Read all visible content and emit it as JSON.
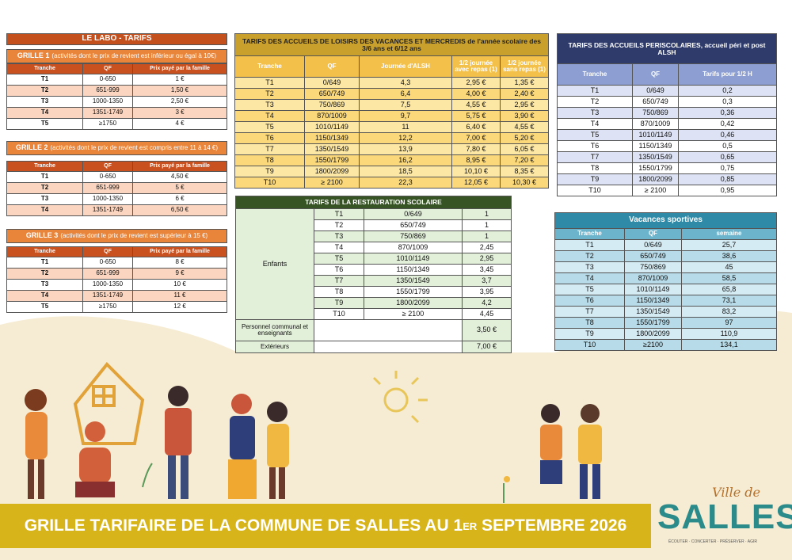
{
  "labo": {
    "title": "LE LABO - TARIFS",
    "grilles": [
      {
        "title": "GRILLE 1",
        "subtitle": "(activités dont le prix de revient est inférieur ou égal à 10€)",
        "columns": [
          "Tranche",
          "QF",
          "Prix payé par la famille"
        ],
        "rows": [
          [
            "T1",
            "0-650",
            "1 €"
          ],
          [
            "T2",
            "651-999",
            "1,50 €"
          ],
          [
            "T3",
            "1000-1350",
            "2,50 €"
          ],
          [
            "T4",
            "1351-1749",
            "3 €"
          ],
          [
            "T5",
            "≥1750",
            "4 €"
          ]
        ]
      },
      {
        "title": "GRILLE 2",
        "subtitle": "(activités dont le prix de revient est compris entre 11 à 14 €)",
        "columns": [
          "Tranche",
          "QF",
          "Prix payé par la famille"
        ],
        "rows": [
          [
            "T1",
            "0-650",
            "4,50 €"
          ],
          [
            "T2",
            "651-999",
            "5 €"
          ],
          [
            "T3",
            "1000-1350",
            "6 €"
          ],
          [
            "T4",
            "1351-1749",
            "6,50 €"
          ]
        ]
      },
      {
        "title": "GRILLE 3",
        "subtitle": "(activités dont le prix de revient est supérieur à 15 €)",
        "columns": [
          "Tranche",
          "QF",
          "Prix payé par la famille"
        ],
        "rows": [
          [
            "T1",
            "0-650",
            "8 €"
          ],
          [
            "T2",
            "651-999",
            "9 €"
          ],
          [
            "T3",
            "1000-1350",
            "10 €"
          ],
          [
            "T4",
            "1351-1749",
            "11 €"
          ],
          [
            "T5",
            "≥1750",
            "12 €"
          ]
        ]
      }
    ]
  },
  "alsh": {
    "title": "TARIFS DES ACCUEILS DE LOISIRS DES VACANCES ET MERCREDIS de l'année scolaire des 3/6 ans et 6/12 ans",
    "columns": [
      "Tranche",
      "QF",
      "Journée d'ALSH",
      "1/2 journée avec repas (1)",
      "1/2 journée sans repas (1)"
    ],
    "rows": [
      [
        "T1",
        "0/649",
        "4,3",
        "2,95 €",
        "1,35 €"
      ],
      [
        "T2",
        "650/749",
        "6,4",
        "4,00 €",
        "2,40 €"
      ],
      [
        "T3",
        "750/869",
        "7,5",
        "4,55 €",
        "2,95 €"
      ],
      [
        "T4",
        "870/1009",
        "9,7",
        "5,75 €",
        "3,90 €"
      ],
      [
        "T5",
        "1010/1149",
        "11",
        "6,40 €",
        "4,55 €"
      ],
      [
        "T6",
        "1150/1349",
        "12,2",
        "7,00 €",
        "5,20 €"
      ],
      [
        "T7",
        "1350/1549",
        "13,9",
        "7,80 €",
        "6,05 €"
      ],
      [
        "T8",
        "1550/1799",
        "16,2",
        "8,95 €",
        "7,20 €"
      ],
      [
        "T9",
        "1800/2099",
        "18,5",
        "10,10 €",
        "8,35 €"
      ],
      [
        "T10",
        "≥ 2100",
        "22,3",
        "12,05 €",
        "10,30 €"
      ]
    ]
  },
  "periscolaire": {
    "title": "TARIFS DES ACCUEILS PERISCOLAIRES, accueil péri et post ALSH",
    "columns": [
      "Tranche",
      "QF",
      "Tarifs pour 1/2 H"
    ],
    "rows": [
      [
        "T1",
        "0/649",
        "0,2"
      ],
      [
        "T2",
        "650/749",
        "0,3"
      ],
      [
        "T3",
        "750/869",
        "0,36"
      ],
      [
        "T4",
        "870/1009",
        "0,42"
      ],
      [
        "T5",
        "1010/1149",
        "0,46"
      ],
      [
        "T6",
        "1150/1349",
        "0,5"
      ],
      [
        "T7",
        "1350/1549",
        "0,65"
      ],
      [
        "T8",
        "1550/1799",
        "0,75"
      ],
      [
        "T9",
        "1800/2099",
        "0,85"
      ],
      [
        "T10",
        "≥ 2100",
        "0,95"
      ]
    ]
  },
  "restauration": {
    "title": "TARIFS DE LA RESTAURATION SCOLAIRE",
    "group": "Enfants",
    "rows": [
      [
        "T1",
        "0/649",
        "1"
      ],
      [
        "T2",
        "650/749",
        "1"
      ],
      [
        "T3",
        "750/869",
        "1"
      ],
      [
        "T4",
        "870/1009",
        "2,45"
      ],
      [
        "T5",
        "1010/1149",
        "2,95"
      ],
      [
        "T6",
        "1150/1349",
        "3,45"
      ],
      [
        "T7",
        "1350/1549",
        "3,7"
      ],
      [
        "T8",
        "1550/1799",
        "3,95"
      ],
      [
        "T9",
        "1800/2099",
        "4,2"
      ],
      [
        "T10",
        "≥ 2100",
        "4,45"
      ]
    ],
    "extra_rows": [
      [
        "Personnel communal et enseignants",
        "3,50 €"
      ],
      [
        "Extérieurs",
        "7,00 €"
      ]
    ]
  },
  "vacances_sportives": {
    "title": "Vacances sportives",
    "columns": [
      "Tranche",
      "QF",
      "semaine"
    ],
    "rows": [
      [
        "T1",
        "0/649",
        "25,7"
      ],
      [
        "T2",
        "650/749",
        "38,6"
      ],
      [
        "T3",
        "750/869",
        "45"
      ],
      [
        "T4",
        "870/1009",
        "58,5"
      ],
      [
        "T5",
        "1010/1149",
        "65,8"
      ],
      [
        "T6",
        "1150/1349",
        "73,1"
      ],
      [
        "T7",
        "1350/1549",
        "83,2"
      ],
      [
        "T8",
        "1550/1799",
        "97"
      ],
      [
        "T9",
        "1800/2099",
        "110,9"
      ],
      [
        "T10",
        "≥2100",
        "134,1"
      ]
    ]
  },
  "banner": {
    "text": "GRILLE TARIFAIRE DE LA COMMUNE DE SALLES AU 1",
    "superscript": "ER",
    "text_end": "SEPTEMBRE 2026"
  },
  "logo": {
    "prefix": "Ville de",
    "name": "SALLES",
    "tagline": "ÉCOUTER · CONCERTER · PRÉSERVER · AGIR"
  }
}
